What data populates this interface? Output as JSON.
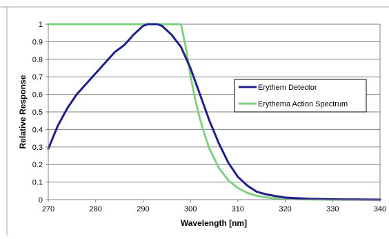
{
  "chart_data": {
    "type": "line",
    "title": "",
    "xlabel": "Wavelength [nm]",
    "ylabel": "Relative Response",
    "xlim": [
      270,
      340
    ],
    "ylim": [
      0,
      1
    ],
    "x_ticks": [
      270,
      280,
      290,
      300,
      310,
      320,
      330,
      340
    ],
    "y_ticks": [
      0,
      0.1,
      0.2,
      0.3,
      0.4,
      0.5,
      0.6,
      0.7,
      0.8,
      0.9,
      1
    ],
    "grid": "horizontal",
    "legend": "right",
    "series": [
      {
        "name": "Erythem Detector",
        "color": "#1f1f8c",
        "x": [
          270,
          272,
          274,
          276,
          278,
          280,
          282,
          284,
          286,
          288,
          290,
          291,
          292,
          293,
          294,
          296,
          298,
          300,
          302,
          304,
          306,
          308,
          310,
          312,
          314,
          316,
          318,
          320,
          325,
          330,
          340
        ],
        "y": [
          0.29,
          0.42,
          0.52,
          0.6,
          0.66,
          0.72,
          0.78,
          0.84,
          0.88,
          0.94,
          0.99,
          1.0,
          1.0,
          1.0,
          0.99,
          0.94,
          0.87,
          0.75,
          0.6,
          0.45,
          0.32,
          0.21,
          0.13,
          0.08,
          0.045,
          0.03,
          0.02,
          0.012,
          0.005,
          0.002,
          0.0
        ]
      },
      {
        "name": "Erythema Action Spectrum",
        "color": "#80d080",
        "x": [
          270,
          280,
          290,
          297,
          298,
          299,
          300,
          301,
          302,
          303,
          304,
          306,
          308,
          310,
          312,
          314,
          316,
          318,
          320,
          325,
          330,
          340
        ],
        "y": [
          1.0,
          1.0,
          1.0,
          1.0,
          1.0,
          0.87,
          0.71,
          0.57,
          0.46,
          0.37,
          0.29,
          0.18,
          0.11,
          0.066,
          0.038,
          0.022,
          0.013,
          0.007,
          0.004,
          0.001,
          0.0,
          0.0
        ]
      }
    ]
  }
}
